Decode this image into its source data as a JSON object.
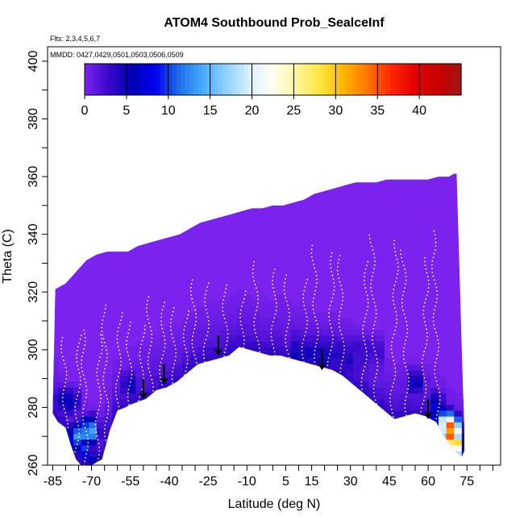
{
  "chart_data": {
    "type": "heatmap",
    "title": "ATOM4 Southbound Prob_SealceInf",
    "subtitle_flights": "Flts: 2,3,4,5,6,7",
    "subtitle_dates": "MMDD: 0427,0429,0501,0503,0506,0509",
    "xlabel": "Latitude (deg N)",
    "ylabel": "Theta (C)",
    "xlim": [
      -87,
      88
    ],
    "ylim": [
      260,
      405
    ],
    "x_tick_labels": [
      "-85",
      "-70",
      "-55",
      "-40",
      "-25",
      "-10",
      "5",
      "15",
      "30",
      "45",
      "60",
      "75"
    ],
    "y_tick_labels": [
      "260",
      "280",
      "300",
      "320",
      "340",
      "360",
      "380",
      "400"
    ],
    "colorbar": {
      "range": [
        0,
        45
      ],
      "tick_labels": [
        "0",
        "5",
        "10",
        "15",
        "20",
        "25",
        "30",
        "35",
        "40"
      ],
      "colors": [
        "#7b22ee",
        "#3a0acc",
        "#0000b4",
        "#0000f0",
        "#1e6ee6",
        "#46aaff",
        "#8ed2ff",
        "#d8f0ff",
        "#fffff0",
        "#fff5a0",
        "#ffe640",
        "#ffb400",
        "#ff7800",
        "#ff2800",
        "#e60000",
        "#c80000",
        "#a01414"
      ]
    },
    "domain_top": [
      [
        -84,
        321
      ],
      [
        -80,
        323
      ],
      [
        -76,
        327
      ],
      [
        -72,
        331
      ],
      [
        -68,
        333
      ],
      [
        -64,
        334
      ],
      [
        -60,
        334
      ],
      [
        -56,
        334
      ],
      [
        -52,
        336
      ],
      [
        -48,
        337
      ],
      [
        -44,
        338
      ],
      [
        -40,
        339
      ],
      [
        -36,
        340
      ],
      [
        -32,
        342
      ],
      [
        -28,
        344
      ],
      [
        -24,
        345
      ],
      [
        -20,
        346
      ],
      [
        -16,
        347
      ],
      [
        -12,
        348
      ],
      [
        -8,
        349
      ],
      [
        -4,
        349
      ],
      [
        0,
        350
      ],
      [
        4,
        350
      ],
      [
        8,
        351
      ],
      [
        12,
        352
      ],
      [
        16,
        354
      ],
      [
        20,
        355
      ],
      [
        24,
        356
      ],
      [
        28,
        357
      ],
      [
        32,
        358
      ],
      [
        36,
        358
      ],
      [
        40,
        358
      ],
      [
        44,
        359
      ],
      [
        48,
        359
      ],
      [
        52,
        359
      ],
      [
        56,
        359
      ],
      [
        60,
        359
      ],
      [
        64,
        360
      ],
      [
        68,
        360
      ],
      [
        70,
        361
      ],
      [
        71,
        361
      ],
      [
        72,
        331
      ],
      [
        73,
        300
      ],
      [
        74,
        272
      ],
      [
        74,
        265
      ]
    ],
    "domain_bottom": [
      [
        -85,
        278
      ],
      [
        -83,
        275
      ],
      [
        -80,
        273
      ],
      [
        -78,
        267
      ],
      [
        -76,
        262
      ],
      [
        -74,
        260
      ],
      [
        -70,
        260
      ],
      [
        -66,
        262
      ],
      [
        -63,
        272
      ],
      [
        -60,
        279
      ],
      [
        -57,
        280
      ],
      [
        -55,
        281
      ],
      [
        -52,
        282
      ],
      [
        -49,
        283
      ],
      [
        -45,
        286
      ],
      [
        -41,
        287
      ],
      [
        -37,
        289
      ],
      [
        -33,
        292
      ],
      [
        -29,
        295
      ],
      [
        -25,
        296
      ],
      [
        -21,
        297
      ],
      [
        -17,
        298
      ],
      [
        -13,
        301
      ],
      [
        -9,
        300
      ],
      [
        -5,
        299
      ],
      [
        -1,
        298
      ],
      [
        3,
        298
      ],
      [
        7,
        297
      ],
      [
        11,
        296
      ],
      [
        15,
        295
      ],
      [
        19,
        294
      ],
      [
        23,
        293
      ],
      [
        27,
        291
      ],
      [
        31,
        288
      ],
      [
        35,
        285
      ],
      [
        39,
        282
      ],
      [
        43,
        279
      ],
      [
        47,
        276
      ],
      [
        51,
        277
      ],
      [
        55,
        278
      ],
      [
        59,
        277
      ],
      [
        63,
        275
      ],
      [
        67,
        269
      ],
      [
        70,
        265
      ],
      [
        73,
        263
      ]
    ],
    "hot_spots": [
      {
        "lat": -76,
        "theta": 270,
        "value": 12
      },
      {
        "lat": -73,
        "theta": 266,
        "value": 9
      },
      {
        "lat": -71,
        "theta": 272,
        "value": 16
      },
      {
        "lat": -68,
        "theta": 262,
        "value": 6
      },
      {
        "lat": -82,
        "theta": 283,
        "value": 5
      },
      {
        "lat": -78,
        "theta": 282,
        "value": 6
      },
      {
        "lat": -55,
        "theta": 288,
        "value": 6
      },
      {
        "lat": 20,
        "theta": 297,
        "value": 5
      },
      {
        "lat": 30,
        "theta": 296,
        "value": 4
      },
      {
        "lat": 55,
        "theta": 289,
        "value": 6
      },
      {
        "lat": 63,
        "theta": 281,
        "value": 7
      },
      {
        "lat": 65,
        "theta": 276,
        "value": 12
      },
      {
        "lat": 67,
        "theta": 274,
        "value": 27
      },
      {
        "lat": 68,
        "theta": 271,
        "value": 33
      },
      {
        "lat": 69,
        "theta": 272,
        "value": 38
      },
      {
        "lat": 70,
        "theta": 268,
        "value": 30
      },
      {
        "lat": 71,
        "theta": 266,
        "value": 24
      }
    ],
    "arrows": [
      {
        "lat": -50,
        "theta": 288
      },
      {
        "lat": -42,
        "theta": 293
      },
      {
        "lat": -21,
        "theta": 303
      },
      {
        "lat": 19,
        "theta": 298
      },
      {
        "lat": 60,
        "theta": 281
      }
    ]
  }
}
